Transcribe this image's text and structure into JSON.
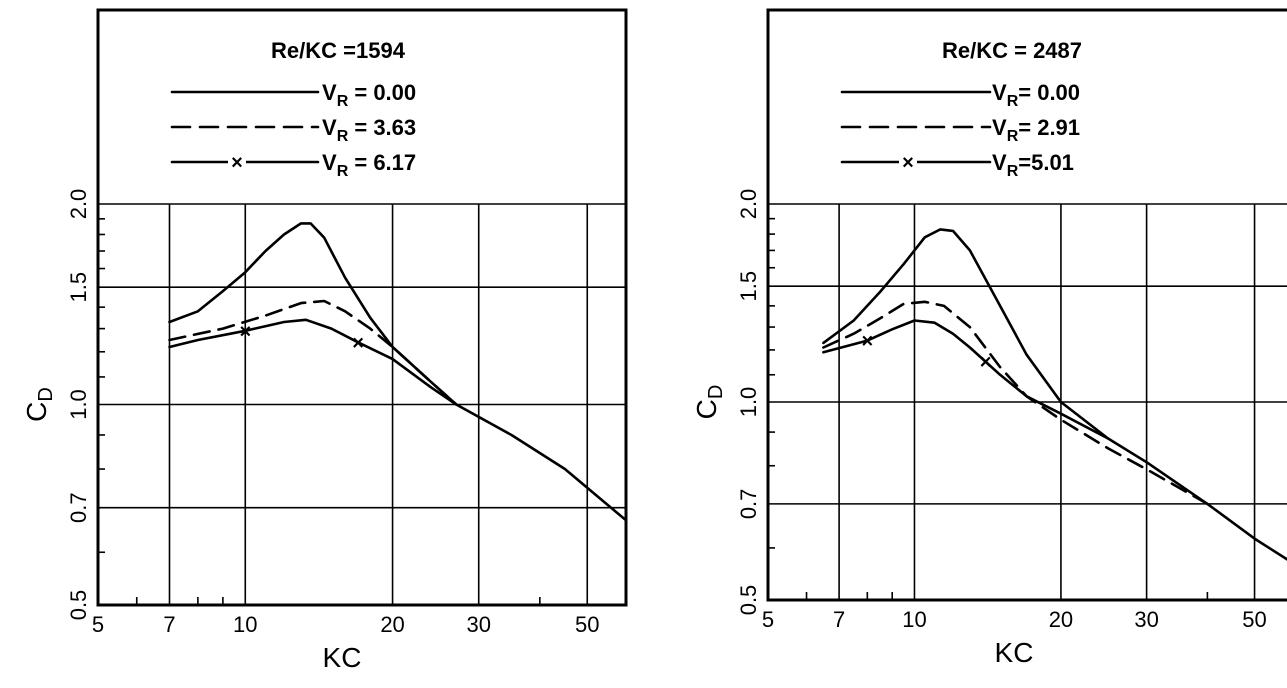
{
  "chart_data": [
    {
      "type": "line",
      "x_scale": "log",
      "y_scale": "log",
      "xlabel": "KC",
      "ylabel": "C_D",
      "xlim": [
        5,
        60
      ],
      "ylim": [
        0.5,
        2.0
      ],
      "x_ticks": [
        {
          "value": 5,
          "label": "5"
        },
        {
          "value": 7,
          "label": "7"
        },
        {
          "value": 10,
          "label": "10"
        },
        {
          "value": 20,
          "label": "20"
        },
        {
          "value": 30,
          "label": "30"
        },
        {
          "value": 50,
          "label": "50"
        }
      ],
      "y_ticks": [
        {
          "value": 0.5,
          "label": "0.5"
        },
        {
          "value": 0.7,
          "label": "0.7"
        },
        {
          "value": 1.0,
          "label": "1.0"
        },
        {
          "value": 1.5,
          "label": "1.5"
        },
        {
          "value": 2.0,
          "label": "2.0"
        }
      ],
      "grid": true,
      "legend": {
        "title": "Re/KC =1594",
        "entries": [
          {
            "style": "solid",
            "label": "V",
            "sub": "R",
            "value": " = 0.00"
          },
          {
            "style": "dashed",
            "label": "V",
            "sub": "R",
            "value": " = 3.63"
          },
          {
            "style": "solid-x",
            "label": "V",
            "sub": "R",
            "value": " = 6.17"
          }
        ]
      },
      "series": [
        {
          "style": "solid",
          "x": [
            7,
            8,
            9,
            10,
            11,
            12,
            13,
            13.6,
            14.5,
            16,
            18,
            20,
            24,
            27,
            35,
            45,
            60
          ],
          "y": [
            1.33,
            1.38,
            1.48,
            1.58,
            1.7,
            1.8,
            1.87,
            1.87,
            1.78,
            1.55,
            1.35,
            1.22,
            1.08,
            1.0,
            0.9,
            0.8,
            0.67
          ]
        },
        {
          "style": "dashed",
          "x": [
            7,
            9,
            11,
            13,
            14.5,
            16,
            18,
            20,
            24,
            27
          ],
          "y": [
            1.25,
            1.3,
            1.36,
            1.42,
            1.43,
            1.38,
            1.3,
            1.22,
            1.08,
            1.0
          ]
        },
        {
          "style": "solid-x",
          "x": [
            7,
            8,
            10,
            12,
            13.3,
            15,
            17,
            20,
            24,
            27
          ],
          "y": [
            1.22,
            1.25,
            1.29,
            1.33,
            1.34,
            1.3,
            1.24,
            1.17,
            1.06,
            1.0
          ],
          "marker_x": [
            10,
            17
          ]
        }
      ]
    },
    {
      "type": "line",
      "x_scale": "log",
      "y_scale": "log",
      "xlabel": "KC",
      "ylabel": "C_D",
      "xlim": [
        5,
        62
      ],
      "ylim": [
        0.5,
        2.0
      ],
      "x_ticks": [
        {
          "value": 5,
          "label": "5"
        },
        {
          "value": 7,
          "label": "7"
        },
        {
          "value": 10,
          "label": "10"
        },
        {
          "value": 20,
          "label": "20"
        },
        {
          "value": 30,
          "label": "30"
        },
        {
          "value": 50,
          "label": "50"
        }
      ],
      "y_ticks": [
        {
          "value": 0.5,
          "label": "0.5"
        },
        {
          "value": 0.7,
          "label": "0.7"
        },
        {
          "value": 1.0,
          "label": "1.0"
        },
        {
          "value": 1.5,
          "label": "1.5"
        },
        {
          "value": 2.0,
          "label": "2.0"
        }
      ],
      "grid": true,
      "legend": {
        "title": "Re/KC = 2487",
        "entries": [
          {
            "style": "solid-bold",
            "label": "V",
            "sub": "R",
            "value": "= 0.00"
          },
          {
            "style": "dashed",
            "label": "V",
            "sub": "R",
            "value": "= 2.91"
          },
          {
            "style": "solid-x",
            "label": "V",
            "sub": "R",
            "value": "=5.01"
          }
        ]
      },
      "series": [
        {
          "style": "solid",
          "x": [
            6.5,
            7.5,
            8.5,
            9.5,
            10.5,
            11.3,
            12,
            13,
            15,
            17,
            20,
            25,
            30,
            40,
            50,
            62
          ],
          "y": [
            1.23,
            1.33,
            1.47,
            1.62,
            1.78,
            1.83,
            1.82,
            1.7,
            1.4,
            1.18,
            1.0,
            0.88,
            0.81,
            0.7,
            0.62,
            0.56
          ]
        },
        {
          "style": "dashed",
          "x": [
            6.5,
            7.5,
            8.5,
            9.5,
            10.5,
            11.5,
            13,
            15,
            17,
            20,
            25,
            30,
            40
          ],
          "y": [
            1.21,
            1.27,
            1.34,
            1.41,
            1.42,
            1.4,
            1.3,
            1.13,
            1.02,
            0.94,
            0.85,
            0.79,
            0.7
          ]
        },
        {
          "style": "solid-x",
          "x": [
            6.5,
            8,
            9,
            10,
            11,
            12,
            13,
            15,
            17,
            20,
            25
          ],
          "y": [
            1.19,
            1.24,
            1.29,
            1.33,
            1.32,
            1.27,
            1.21,
            1.1,
            1.02,
            0.96,
            0.88
          ],
          "marker_x": [
            8,
            14
          ]
        }
      ]
    }
  ]
}
